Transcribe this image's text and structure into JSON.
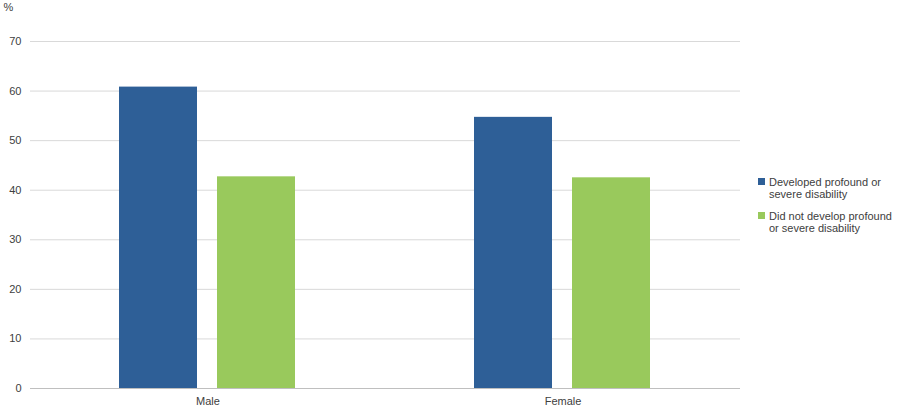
{
  "chart_data": {
    "type": "bar",
    "y_label": "%",
    "categories": [
      "Male",
      "Female"
    ],
    "series": [
      {
        "name": "Developed profound or severe disability",
        "color": "#2e5f97",
        "values": [
          60.8,
          54.7
        ]
      },
      {
        "name": "Did not develop profound or severe disability",
        "color": "#99c95c",
        "values": [
          42.7,
          42.5
        ]
      }
    ],
    "ylim": [
      0,
      70
    ],
    "yticks": [
      0,
      10,
      20,
      30,
      40,
      50,
      60,
      70
    ],
    "grid": true,
    "legend": "right"
  }
}
